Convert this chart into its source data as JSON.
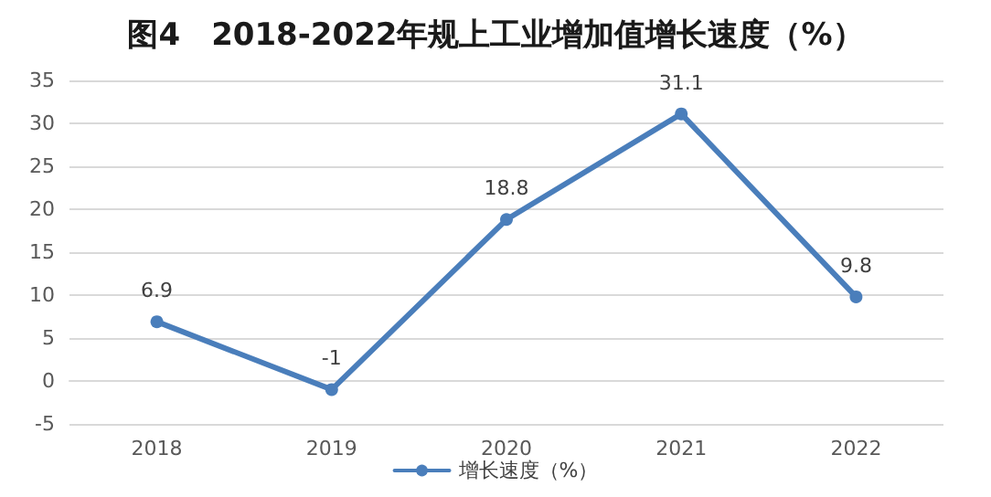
{
  "chart_data": {
    "type": "line",
    "title": "图4　2018-2022年规上工业增加值增长速度（%）",
    "categories": [
      "2018",
      "2019",
      "2020",
      "2021",
      "2022"
    ],
    "series": [
      {
        "name": "增长速度（%）",
        "color": "#4a7ebb",
        "values": [
          6.9,
          -1,
          18.8,
          31.1,
          9.8
        ]
      }
    ],
    "ylim": [
      -5,
      35
    ],
    "yticks": [
      -5,
      0,
      5,
      10,
      15,
      20,
      25,
      30,
      35
    ],
    "grid": "y",
    "legend": "bottom",
    "marker": "circle",
    "line_style": "solid",
    "data_labels": true
  }
}
